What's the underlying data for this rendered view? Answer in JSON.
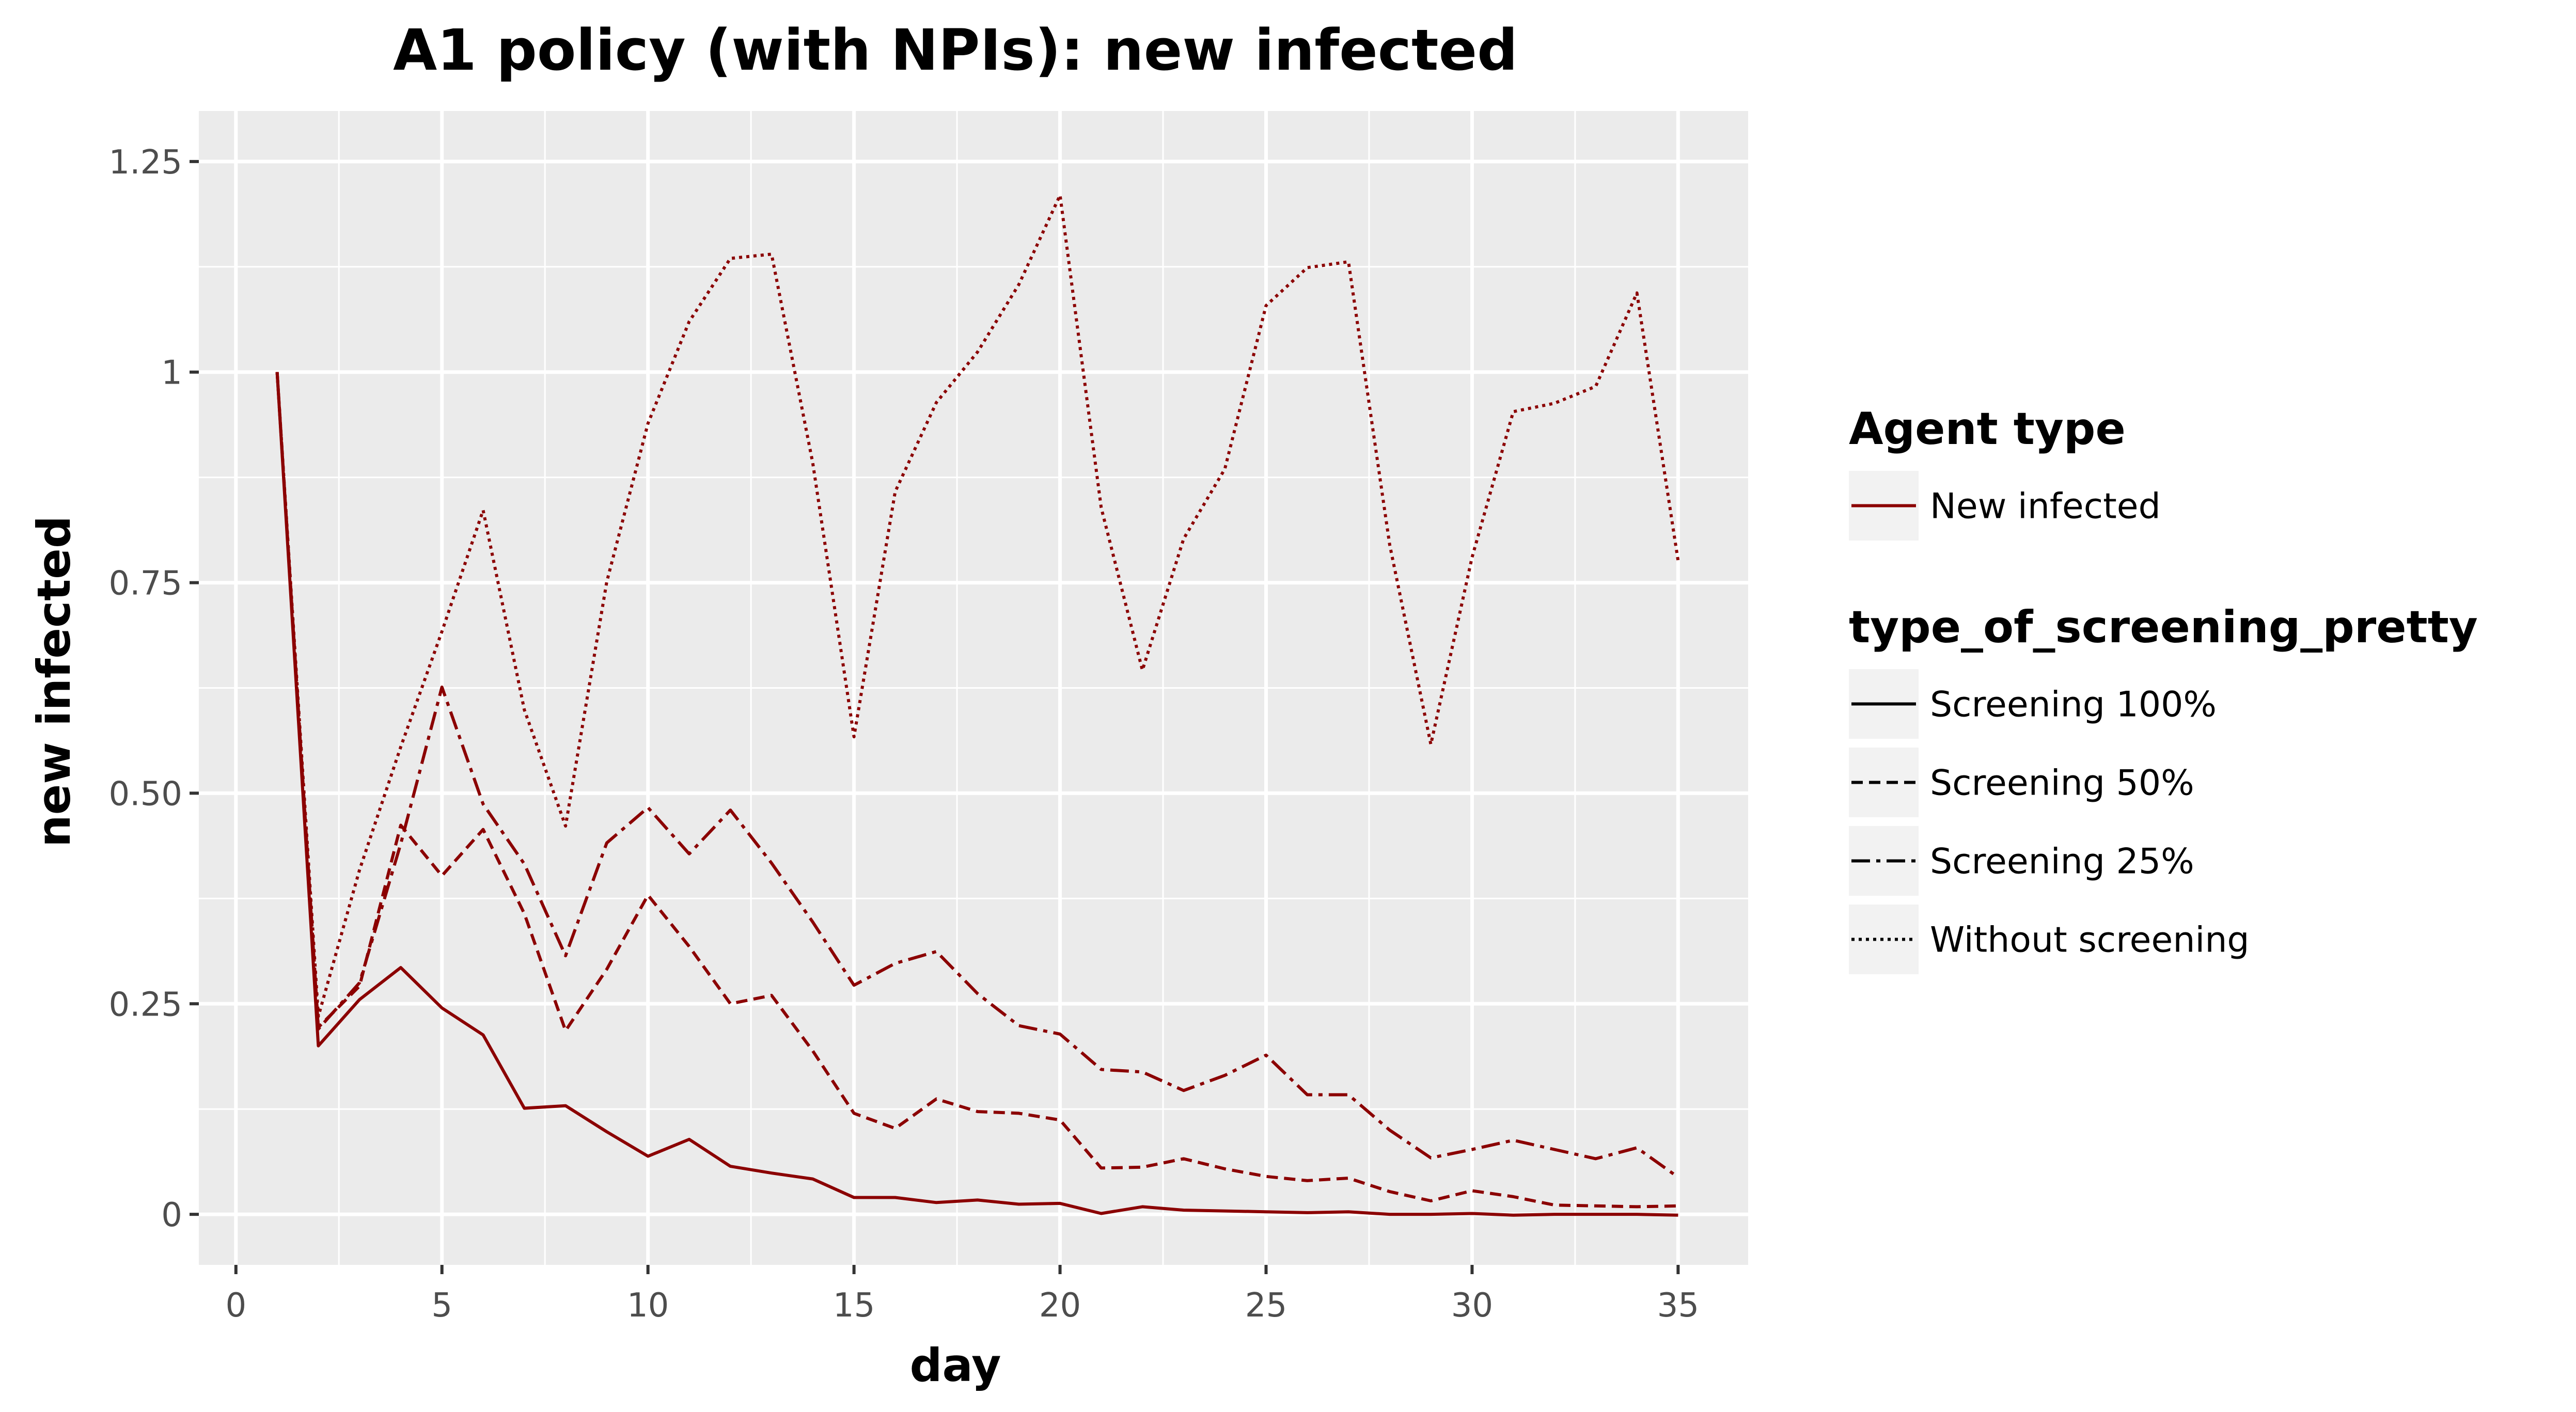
{
  "chart_data": {
    "type": "line",
    "title": "A1 policy (with NPIs): new infected",
    "xlabel": "day",
    "ylabel": "new infected",
    "xlim": [
      -0.9,
      36.7
    ],
    "ylim": [
      -0.06,
      1.31
    ],
    "x_ticks": [
      0,
      5,
      10,
      15,
      20,
      25,
      30,
      35
    ],
    "x_tick_labels": [
      "0",
      "5",
      "10",
      "15",
      "20",
      "25",
      "30",
      "35"
    ],
    "y_ticks": [
      0,
      0.25,
      0.5,
      0.75,
      1,
      1.25
    ],
    "y_tick_labels": [
      "0",
      "0.25",
      "0.50",
      "0.75",
      "1",
      "1.25"
    ],
    "grid": true,
    "line_color": "#8b0000",
    "panel_background": "#ebebeb",
    "grid_color": "#ffffff",
    "x": [
      1,
      2,
      3,
      4,
      5,
      6,
      7,
      8,
      9,
      10,
      11,
      12,
      13,
      14,
      15,
      16,
      17,
      18,
      19,
      20,
      21,
      22,
      23,
      24,
      25,
      26,
      27,
      28,
      29,
      30,
      31,
      32,
      33,
      34,
      35
    ],
    "series": [
      {
        "name": "Screening 100%",
        "dash": "solid",
        "values": [
          1.0,
          0.2,
          0.255,
          0.293,
          0.245,
          0.213,
          0.126,
          0.129,
          0.098,
          0.069,
          0.089,
          0.057,
          0.049,
          0.042,
          0.02,
          0.02,
          0.014,
          0.017,
          0.012,
          0.013,
          0.001,
          0.009,
          0.005,
          0.004,
          0.003,
          0.002,
          0.003,
          0.0,
          0.0,
          0.001,
          -0.001,
          0.0,
          0.0,
          0.0,
          -0.001
        ]
      },
      {
        "name": "Screening 50%",
        "dash": "dashed",
        "values": [
          1.0,
          0.222,
          0.271,
          0.462,
          0.402,
          0.457,
          0.357,
          0.218,
          0.291,
          0.379,
          0.318,
          0.25,
          0.26,
          0.194,
          0.12,
          0.102,
          0.137,
          0.122,
          0.12,
          0.112,
          0.055,
          0.056,
          0.066,
          0.054,
          0.045,
          0.04,
          0.043,
          0.027,
          0.016,
          0.028,
          0.021,
          0.011,
          0.01,
          0.009,
          0.01
        ]
      },
      {
        "name": "Screening 25%",
        "dash": "dashdot",
        "values": [
          1.0,
          0.22,
          0.275,
          0.44,
          0.626,
          0.487,
          0.416,
          0.307,
          0.441,
          0.483,
          0.428,
          0.48,
          0.417,
          0.347,
          0.272,
          0.298,
          0.312,
          0.262,
          0.224,
          0.214,
          0.172,
          0.169,
          0.147,
          0.165,
          0.189,
          0.142,
          0.142,
          0.1,
          0.067,
          0.077,
          0.088,
          0.077,
          0.066,
          0.079,
          0.044
        ]
      },
      {
        "name": "Without screening",
        "dash": "dotted",
        "values": [
          1.0,
          0.235,
          0.409,
          0.555,
          0.692,
          0.836,
          0.599,
          0.461,
          0.751,
          0.939,
          1.06,
          1.135,
          1.14,
          0.892,
          0.567,
          0.858,
          0.964,
          1.024,
          1.104,
          1.21,
          0.839,
          0.646,
          0.802,
          0.885,
          1.079,
          1.124,
          1.131,
          0.795,
          0.558,
          0.78,
          0.953,
          0.963,
          0.983,
          1.094,
          0.776
        ]
      }
    ],
    "legend": {
      "placement": "right",
      "groups": [
        {
          "title": "Agent type",
          "entries": [
            {
              "label": "New infected",
              "dash": "solid",
              "color": "#8b0000"
            }
          ]
        },
        {
          "title": "type_of_screening_pretty",
          "entries": [
            {
              "label": "Screening 100%",
              "dash": "solid",
              "color": "#000000"
            },
            {
              "label": "Screening 50%",
              "dash": "dashed",
              "color": "#000000"
            },
            {
              "label": "Screening 25%",
              "dash": "dashdot",
              "color": "#000000"
            },
            {
              "label": "Without screening",
              "dash": "dotted",
              "color": "#000000"
            }
          ]
        }
      ]
    }
  }
}
